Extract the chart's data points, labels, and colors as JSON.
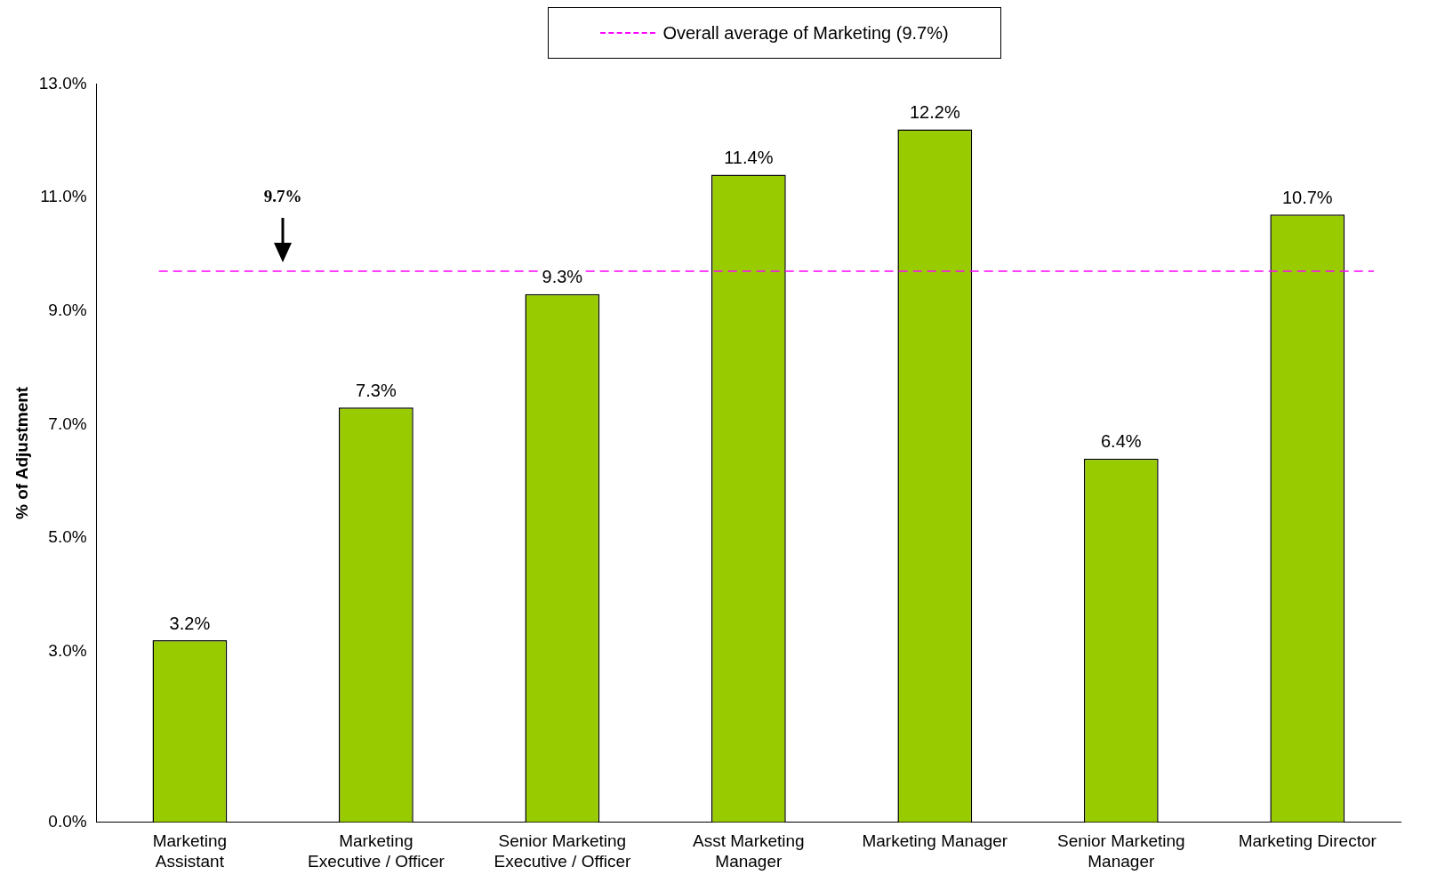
{
  "chart_data": {
    "type": "bar",
    "ylabel": "% of Adjustment",
    "categories": [
      "Marketing Assistant",
      "Marketing Executive / Officer",
      "Senior Marketing Executive / Officer",
      "Asst Marketing Manager",
      "Marketing Manager",
      "Senior Marketing Manager",
      "Marketing Director"
    ],
    "values": [
      3.2,
      7.3,
      9.3,
      11.4,
      12.2,
      6.4,
      10.7
    ],
    "value_labels": [
      "3.2%",
      "7.3%",
      "9.3%",
      "11.4%",
      "12.2%",
      "6.4%",
      "10.7%"
    ],
    "color": "#99cc00",
    "ylim": [
      0,
      13
    ],
    "yticks": [
      {
        "value": 0,
        "label": "0.0%"
      },
      {
        "value": 3,
        "label": "3.0%"
      },
      {
        "value": 5,
        "label": "5.0%"
      },
      {
        "value": 7,
        "label": "7.0%"
      },
      {
        "value": 9,
        "label": "9.0%"
      },
      {
        "value": 11,
        "label": "11.0%"
      },
      {
        "value": 13,
        "label": "13.0%"
      }
    ],
    "ref_lines": [
      {
        "axis": "y",
        "value": 9.7,
        "label": "Overall average of Marketing (9.7%)",
        "color": "#ff00ff",
        "line_style": "dashed"
      }
    ],
    "annotations": [
      "9.7%"
    ],
    "legend": "top",
    "grid": false
  }
}
